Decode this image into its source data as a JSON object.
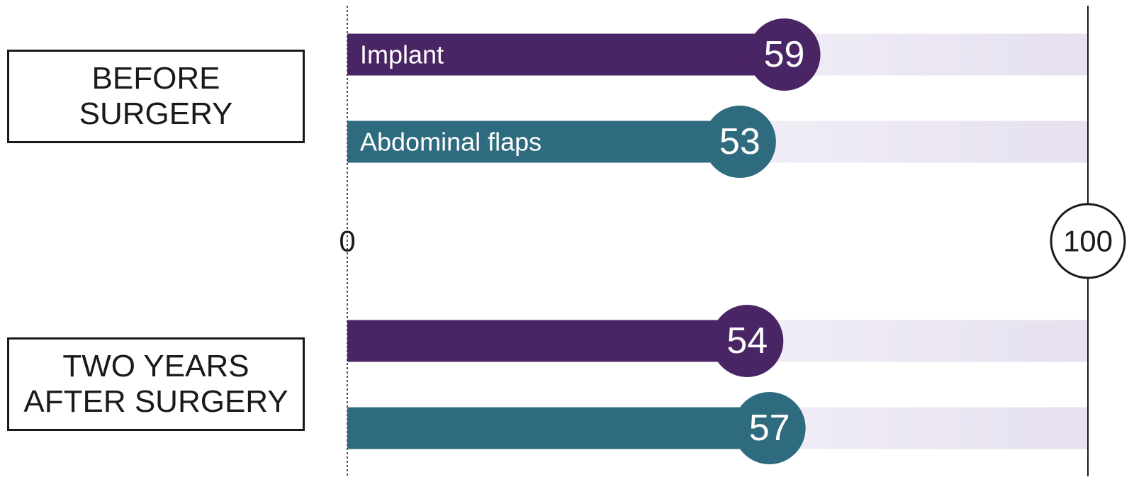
{
  "chart_data": {
    "type": "bar",
    "categories": [
      "BEFORE\nSURGERY",
      "TWO YEARS\nAFTER SURGERY"
    ],
    "series": [
      {
        "name": "Implant",
        "color": "#4a2566",
        "values": [
          59,
          54
        ]
      },
      {
        "name": "Abdominal flaps",
        "color": "#2f6b7e",
        "values": [
          53,
          57
        ]
      }
    ],
    "xlim": [
      0,
      100
    ],
    "xticks": [
      0,
      100
    ]
  }
}
